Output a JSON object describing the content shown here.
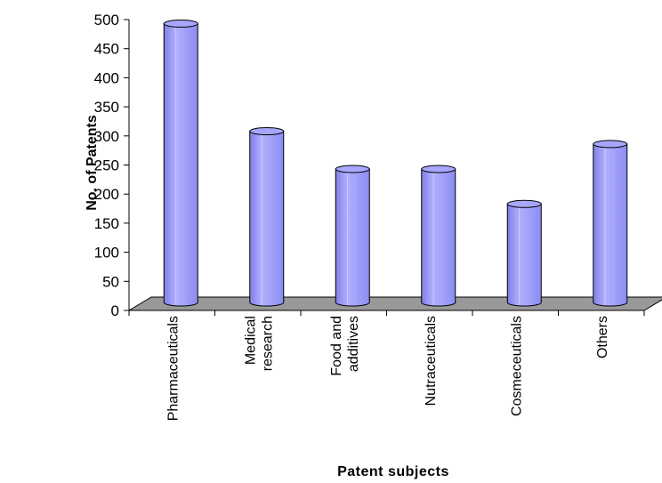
{
  "chart_data": {
    "type": "bar",
    "title": "",
    "xlabel": "Patent subjects",
    "ylabel": "No. of Patents",
    "ylim": [
      0,
      500
    ],
    "yticks": [
      0,
      50,
      100,
      150,
      200,
      250,
      300,
      350,
      400,
      450,
      500
    ],
    "categories": [
      [
        "Pharmaceuticals"
      ],
      [
        "Medical",
        "research"
      ],
      [
        "Food and",
        "additives"
      ],
      [
        "Nutraceuticals"
      ],
      [
        "Cosmeceuticals"
      ],
      [
        "Others"
      ]
    ],
    "values": [
      490,
      305,
      240,
      240,
      180,
      283
    ],
    "bar_color": "#9999ff",
    "floor_color": "#999999",
    "grid": false,
    "legend": "none"
  }
}
